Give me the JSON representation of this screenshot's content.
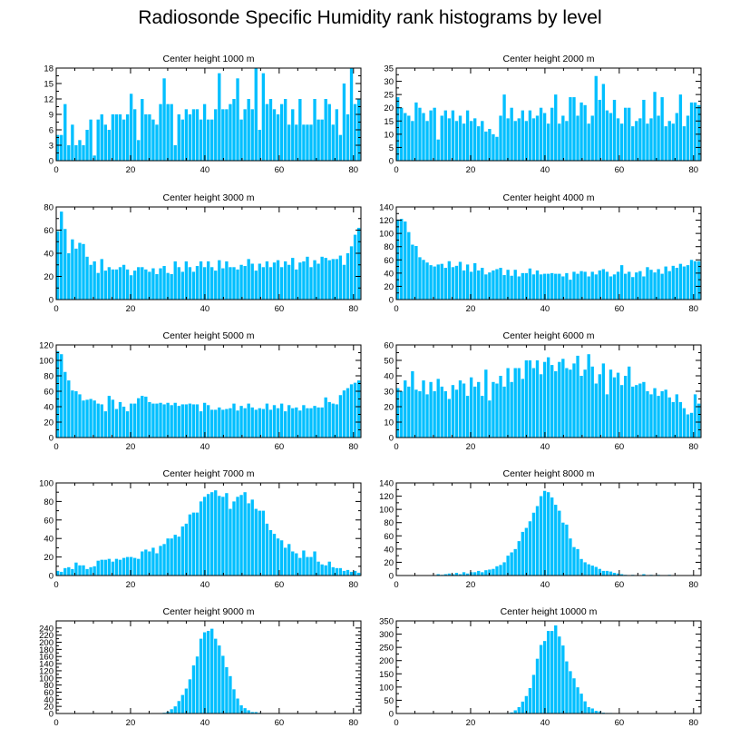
{
  "title": "Radiosonde Specific Humidity rank histograms by level",
  "bar_color": "#00bfff",
  "chart_data": [
    {
      "type": "bar",
      "title": "Center height 1000 m",
      "xlim": [
        0,
        82
      ],
      "ylim": [
        0,
        18
      ],
      "xticks": [
        0,
        20,
        40,
        60,
        80
      ],
      "yticks": [
        0,
        3,
        6,
        9,
        12,
        15,
        18
      ],
      "values": [
        5,
        5,
        11,
        3,
        7,
        3,
        4,
        3,
        6,
        8,
        1,
        8,
        9,
        7,
        6,
        9,
        9,
        9,
        8,
        9,
        13,
        10,
        4,
        12,
        9,
        9,
        8,
        7,
        11,
        16,
        11,
        11,
        3,
        9,
        8,
        10,
        9,
        10,
        10,
        8,
        11,
        8,
        8,
        10,
        17,
        10,
        10,
        11,
        12,
        16,
        8,
        10,
        12,
        10,
        18,
        6,
        17,
        11,
        12,
        10,
        9,
        11,
        12,
        7,
        10,
        7,
        12,
        7,
        7,
        7,
        12,
        8,
        8,
        12,
        11,
        7,
        10,
        5,
        15,
        9,
        18,
        11,
        12
      ]
    },
    {
      "type": "bar",
      "title": "Center height 2000 m",
      "xlim": [
        0,
        82
      ],
      "ylim": [
        0,
        35
      ],
      "xticks": [
        0,
        20,
        40,
        60,
        80
      ],
      "yticks": [
        0,
        5,
        10,
        15,
        20,
        25,
        30,
        35
      ],
      "values": [
        24,
        20,
        18,
        17,
        15,
        22,
        20,
        18,
        15,
        19,
        20,
        8,
        17,
        19,
        16,
        19,
        15,
        17,
        14,
        19,
        15,
        16,
        13,
        15,
        11,
        12,
        10,
        9,
        17,
        25,
        16,
        20,
        15,
        16,
        19,
        15,
        19,
        16,
        17,
        20,
        18,
        14,
        20,
        25,
        14,
        17,
        15,
        24,
        24,
        17,
        22,
        21,
        14,
        17,
        32,
        23,
        29,
        19,
        18,
        23,
        16,
        14,
        20,
        20,
        13,
        15,
        16,
        23,
        14,
        16,
        26,
        17,
        24,
        13,
        15,
        14,
        18,
        25,
        13,
        17,
        22,
        22,
        21
      ]
    },
    {
      "type": "bar",
      "title": "Center height 3000 m",
      "xlim": [
        0,
        82
      ],
      "ylim": [
        0,
        80
      ],
      "xticks": [
        0,
        20,
        40,
        60,
        80
      ],
      "yticks": [
        0,
        20,
        40,
        60,
        80
      ],
      "values": [
        59,
        76,
        61,
        40,
        52,
        44,
        49,
        48,
        37,
        30,
        33,
        23,
        35,
        25,
        28,
        26,
        26,
        28,
        30,
        26,
        21,
        25,
        28,
        28,
        26,
        24,
        27,
        22,
        27,
        29,
        23,
        22,
        33,
        28,
        24,
        33,
        28,
        24,
        29,
        33,
        28,
        33,
        28,
        25,
        34,
        27,
        33,
        28,
        28,
        26,
        30,
        29,
        35,
        31,
        25,
        31,
        28,
        33,
        28,
        32,
        34,
        28,
        33,
        30,
        36,
        26,
        32,
        33,
        37,
        28,
        34,
        31,
        37,
        36,
        34,
        35,
        35,
        38,
        30,
        40,
        46,
        56,
        62
      ]
    },
    {
      "type": "bar",
      "title": "Center height 4000 m",
      "xlim": [
        0,
        82
      ],
      "ylim": [
        0,
        140
      ],
      "xticks": [
        0,
        20,
        40,
        60,
        80
      ],
      "yticks": [
        0,
        20,
        40,
        60,
        80,
        100,
        120,
        140
      ],
      "values": [
        121,
        122,
        118,
        102,
        83,
        81,
        64,
        60,
        56,
        52,
        50,
        53,
        54,
        48,
        58,
        49,
        51,
        57,
        44,
        53,
        42,
        55,
        44,
        48,
        38,
        41,
        44,
        46,
        48,
        37,
        45,
        36,
        45,
        35,
        40,
        40,
        47,
        38,
        44,
        38,
        39,
        39,
        40,
        39,
        39,
        35,
        40,
        30,
        42,
        39,
        43,
        42,
        35,
        42,
        38,
        44,
        46,
        42,
        35,
        38,
        42,
        52,
        39,
        42,
        34,
        41,
        43,
        35,
        49,
        45,
        41,
        46,
        39,
        50,
        43,
        51,
        48,
        54,
        50,
        52,
        60,
        58,
        58
      ]
    },
    {
      "type": "bar",
      "title": "Center height 5000 m",
      "xlim": [
        0,
        82
      ],
      "ylim": [
        0,
        120
      ],
      "xticks": [
        0,
        20,
        40,
        60,
        80
      ],
      "yticks": [
        0,
        20,
        40,
        60,
        80,
        100,
        120
      ],
      "values": [
        112,
        108,
        85,
        74,
        61,
        60,
        56,
        48,
        49,
        50,
        48,
        44,
        43,
        34,
        54,
        49,
        37,
        46,
        40,
        34,
        44,
        44,
        51,
        54,
        53,
        46,
        44,
        44,
        45,
        43,
        45,
        42,
        45,
        41,
        43,
        43,
        44,
        43,
        43,
        34,
        45,
        42,
        36,
        36,
        39,
        36,
        37,
        38,
        44,
        35,
        41,
        38,
        44,
        39,
        36,
        38,
        37,
        44,
        36,
        42,
        38,
        44,
        34,
        42,
        38,
        39,
        35,
        42,
        38,
        38,
        41,
        39,
        39,
        52,
        46,
        44,
        43,
        55,
        61,
        64,
        69,
        71,
        74
      ]
    },
    {
      "type": "bar",
      "title": "Center height 6000 m",
      "xlim": [
        0,
        82
      ],
      "ylim": [
        0,
        60
      ],
      "xticks": [
        0,
        20,
        40,
        60,
        80
      ],
      "yticks": [
        0,
        10,
        20,
        30,
        40,
        50,
        60
      ],
      "values": [
        32,
        30,
        37,
        33,
        43,
        31,
        30,
        37,
        28,
        36,
        30,
        38,
        33,
        30,
        25,
        34,
        31,
        37,
        35,
        27,
        39,
        33,
        36,
        27,
        44,
        24,
        36,
        35,
        40,
        33,
        45,
        36,
        45,
        45,
        38,
        50,
        50,
        45,
        50,
        41,
        49,
        52,
        47,
        43,
        49,
        51,
        45,
        44,
        48,
        53,
        40,
        44,
        54,
        46,
        35,
        41,
        48,
        28,
        44,
        39,
        42,
        34,
        40,
        46,
        33,
        34,
        35,
        36,
        30,
        28,
        32,
        27,
        30,
        31,
        26,
        23,
        28,
        23,
        19,
        15,
        16,
        28,
        22
      ]
    },
    {
      "type": "bar",
      "title": "Center height 7000 m",
      "xlim": [
        0,
        82
      ],
      "ylim": [
        0,
        100
      ],
      "xticks": [
        0,
        20,
        40,
        60,
        80
      ],
      "yticks": [
        0,
        20,
        40,
        60,
        80,
        100
      ],
      "values": [
        5,
        4,
        8,
        9,
        7,
        14,
        11,
        11,
        7,
        9,
        10,
        16,
        17,
        17,
        18,
        15,
        18,
        17,
        19,
        20,
        20,
        19,
        18,
        26,
        28,
        26,
        30,
        24,
        32,
        34,
        40,
        40,
        44,
        42,
        53,
        56,
        66,
        68,
        68,
        80,
        85,
        88,
        90,
        92,
        86,
        85,
        89,
        72,
        80,
        85,
        87,
        90,
        78,
        82,
        72,
        70,
        70,
        56,
        49,
        45,
        40,
        38,
        30,
        34,
        26,
        24,
        19,
        27,
        20,
        20,
        26,
        15,
        12,
        11,
        15,
        9,
        8,
        8,
        5,
        6,
        4,
        5,
        3
      ]
    },
    {
      "type": "bar",
      "title": "Center height 8000 m",
      "xlim": [
        0,
        82
      ],
      "ylim": [
        0,
        140
      ],
      "xticks": [
        0,
        20,
        40,
        60,
        80
      ],
      "yticks": [
        0,
        20,
        40,
        60,
        80,
        100,
        120,
        140
      ],
      "values": [
        0,
        0,
        0,
        0,
        0,
        0,
        0,
        0,
        0,
        0,
        0,
        2,
        1,
        2,
        3,
        2,
        4,
        2,
        5,
        3,
        5,
        5,
        7,
        5,
        8,
        9,
        10,
        14,
        16,
        20,
        30,
        35,
        40,
        52,
        66,
        72,
        82,
        95,
        105,
        120,
        128,
        126,
        118,
        107,
        98,
        80,
        77,
        56,
        43,
        40,
        25,
        20,
        17,
        15,
        13,
        10,
        7,
        7,
        6,
        4,
        3,
        2,
        1,
        0,
        1,
        0,
        0,
        2,
        0,
        1,
        0,
        1,
        0,
        0,
        1,
        0,
        0,
        0,
        0,
        0,
        0,
        0,
        0
      ]
    },
    {
      "type": "bar",
      "title": "Center height 9000 m",
      "xlim": [
        0,
        82
      ],
      "ylim": [
        0,
        260
      ],
      "xticks": [
        0,
        20,
        40,
        60,
        80
      ],
      "yticks": [
        0,
        20,
        40,
        60,
        80,
        100,
        120,
        140,
        160,
        180,
        200,
        220,
        240
      ],
      "values": [
        0,
        0,
        0,
        0,
        0,
        0,
        0,
        0,
        0,
        0,
        0,
        0,
        0,
        0,
        0,
        0,
        0,
        0,
        0,
        0,
        0,
        0,
        0,
        0,
        0,
        0,
        0,
        0,
        1,
        2,
        5,
        12,
        20,
        35,
        52,
        70,
        96,
        135,
        160,
        210,
        228,
        232,
        238,
        210,
        191,
        162,
        130,
        105,
        68,
        42,
        23,
        15,
        9,
        4,
        4,
        2,
        1,
        1,
        0,
        0,
        0,
        0,
        0,
        0,
        0,
        0,
        0,
        0,
        0,
        0,
        0,
        0,
        0,
        0,
        0,
        0,
        0,
        0,
        0,
        0,
        0,
        0,
        0
      ]
    },
    {
      "type": "bar",
      "title": "Center height 10000 m",
      "xlim": [
        0,
        82
      ],
      "ylim": [
        0,
        350
      ],
      "xticks": [
        0,
        20,
        40,
        60,
        80
      ],
      "yticks": [
        0,
        50,
        100,
        150,
        200,
        250,
        300,
        350
      ],
      "values": [
        0,
        0,
        0,
        0,
        0,
        0,
        0,
        0,
        0,
        0,
        0,
        0,
        0,
        0,
        0,
        0,
        0,
        0,
        0,
        0,
        0,
        0,
        0,
        0,
        0,
        0,
        0,
        0,
        0,
        1,
        2,
        4,
        12,
        24,
        45,
        66,
        96,
        146,
        207,
        259,
        274,
        312,
        312,
        333,
        291,
        257,
        197,
        160,
        133,
        99,
        75,
        46,
        24,
        19,
        10,
        8,
        3,
        2,
        2,
        1,
        1,
        0,
        1,
        0,
        0,
        0,
        0,
        0,
        0,
        0,
        0,
        0,
        0,
        0,
        0,
        0,
        0,
        0,
        0,
        0,
        0,
        0,
        0
      ]
    }
  ]
}
